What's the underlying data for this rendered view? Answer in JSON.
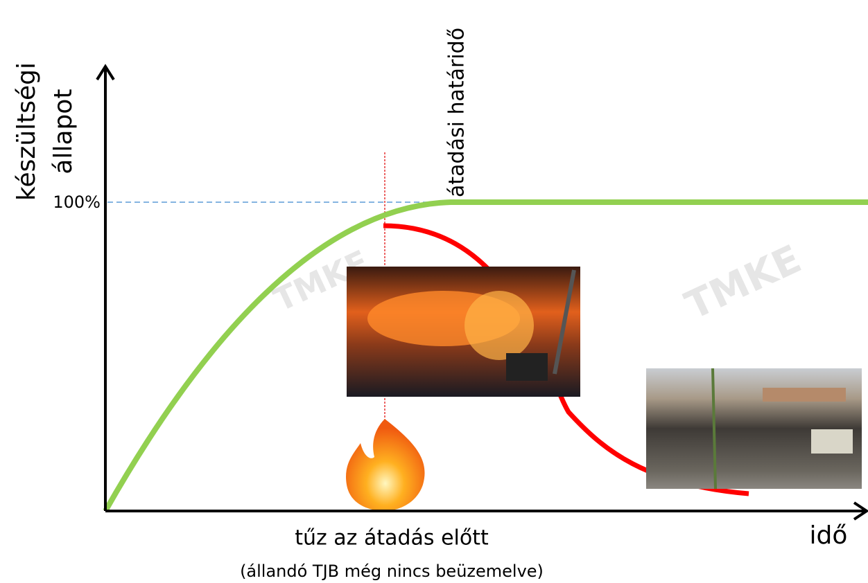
{
  "axes": {
    "y_label": [
      "készültségi",
      "állapot"
    ],
    "y_tick": "100%",
    "x_label": "idő"
  },
  "annotations": {
    "deadline": "átadási határidő",
    "fire": "tűz az átadás előtt",
    "note": "(állandó TJB még nincs beüzemelve)"
  },
  "watermarks": [
    "TMKE",
    "TMKE"
  ]
}
